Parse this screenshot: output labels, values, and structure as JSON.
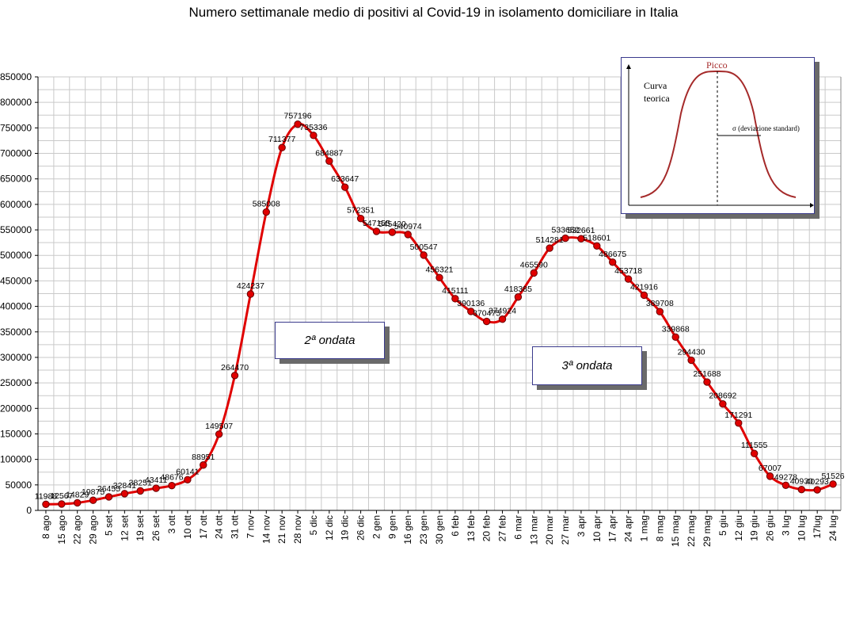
{
  "chart_data": {
    "type": "line",
    "title": "Numero settimanale medio di positivi al Covid-19  in isolamento domiciliare in Italia",
    "ylim": [
      0,
      850000
    ],
    "yticks": [
      0,
      50000,
      100000,
      150000,
      200000,
      250000,
      300000,
      350000,
      400000,
      450000,
      500000,
      550000,
      600000,
      650000,
      700000,
      750000,
      800000,
      850000
    ],
    "grid": true,
    "series_color": "#e00000",
    "x": [
      "8 ago",
      "15 ago",
      "22 ago",
      "29 ago",
      "5 set",
      "12 set",
      "19 set",
      "26 set",
      "3 ott",
      "10 ott",
      "17 ott",
      "24 ott",
      "31 ott",
      "7 nov",
      "14 nov",
      "21 nov",
      "28 nov",
      "5 dic",
      "12 dic",
      "19 dic",
      "26 dic",
      "2 gen",
      "9 gen",
      "16 gen",
      "23 gen",
      "30 gen",
      "6 feb",
      "13 feb",
      "20 feb",
      "27 feb",
      "6 mar",
      "13 mar",
      "20 mar",
      "27 mar",
      "3 apr",
      "10 apr",
      "17 apr",
      "24 apr",
      "1 mag",
      "8 mag",
      "15 mag",
      "22 mag",
      "29 mag",
      "5 giu",
      "12 giu",
      "19 giu",
      "26 giu",
      "3 lug",
      "10 lug",
      "17lug",
      "24 lug"
    ],
    "values": [
      11988,
      12567,
      14829,
      19875,
      26455,
      32841,
      38251,
      43411,
      48676,
      60141,
      88951,
      149507,
      264470,
      424237,
      585008,
      711377,
      757196,
      735336,
      684887,
      633647,
      572351,
      547155,
      545420,
      540974,
      500547,
      456321,
      415111,
      390136,
      370475,
      374924,
      418385,
      465590,
      514281,
      533652,
      532661,
      518601,
      486675,
      453718,
      421916,
      389708,
      339868,
      294430,
      251688,
      208692,
      171291,
      111555,
      67007,
      49278,
      40930,
      40293,
      51526
    ],
    "annotations": [
      "2ª ondata",
      "3ª ondata"
    ]
  },
  "inset": {
    "peak_label": "Picco",
    "curve_label_1": "Curva",
    "curve_label_2": "teorica",
    "sigma_label": "σ  (deviazione standard)"
  }
}
